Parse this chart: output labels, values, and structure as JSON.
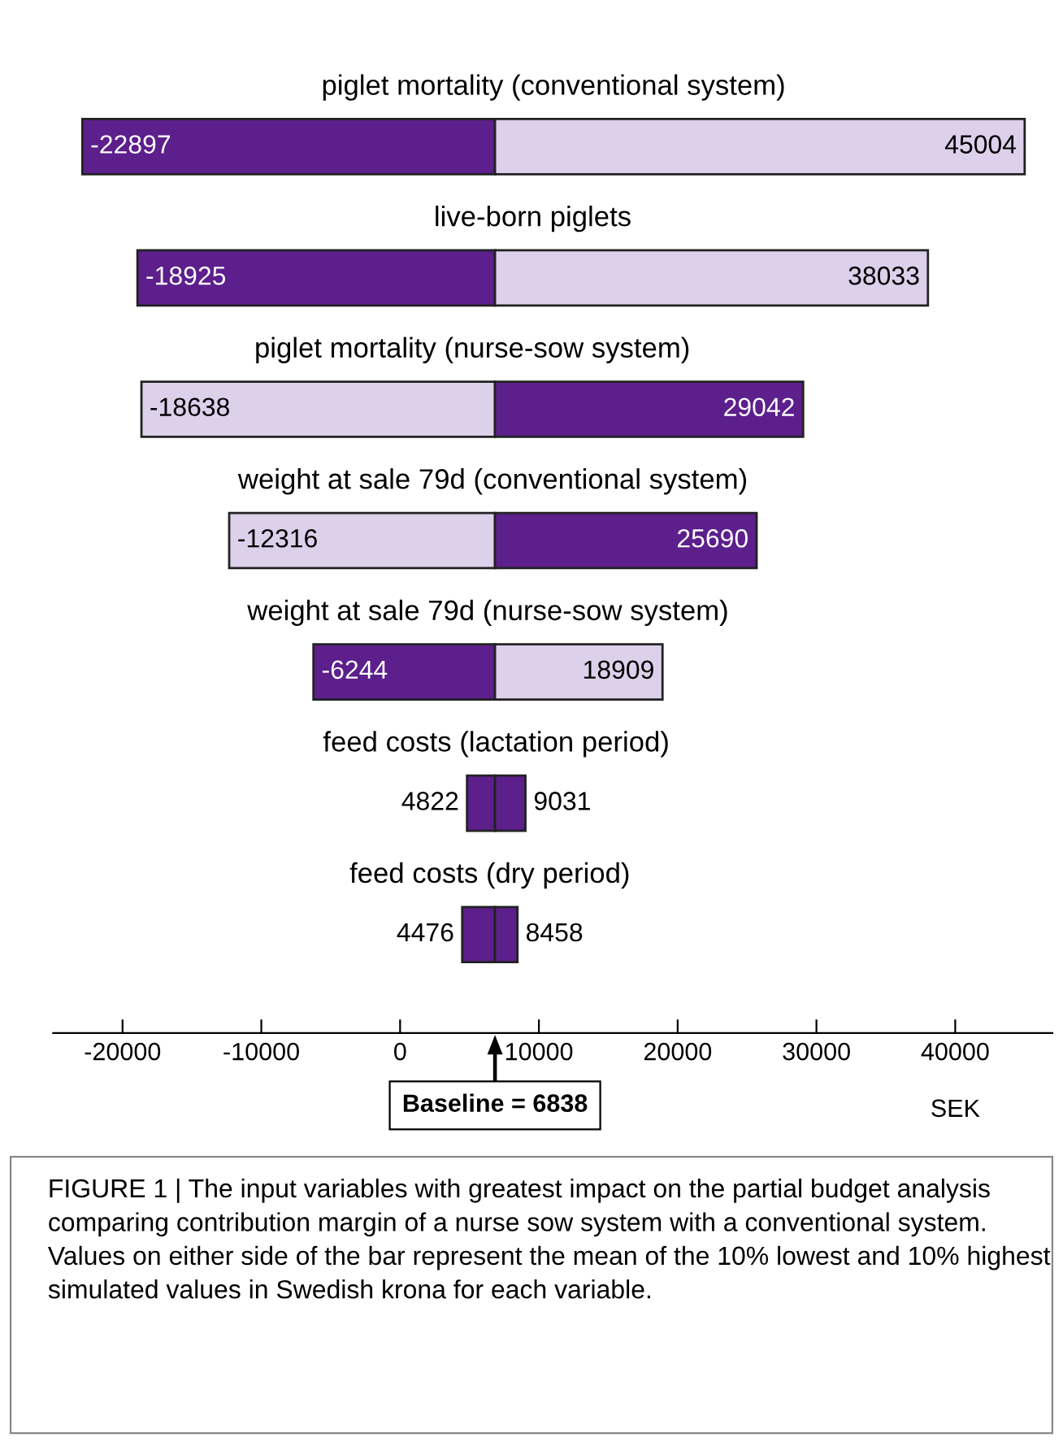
{
  "chart_data": {
    "type": "bar",
    "orientation": "horizontal",
    "categories": [
      "piglet mortality (conventional system)",
      "live-born piglets",
      "piglet mortality (nurse-sow system)",
      "weight at sale 79d (conventional system)",
      "weight at sale 79d (nurse-sow system)",
      "feed costs (lactation period)",
      "feed costs (dry period)"
    ],
    "series": [
      {
        "base": [
          -22897,
          -18925,
          -18638,
          -12316,
          -6244,
          4822,
          4476
        ],
        "values": [
          29735,
          25763,
          25476,
          19154,
          13082,
          2016,
          2362
        ],
        "colors": [
          "#5c1f8c",
          "#5c1f8c",
          "#ddd0ea",
          "#ddd0ea",
          "#5c1f8c",
          "#5c1f8c",
          "#5c1f8c"
        ]
      },
      {
        "base": [
          6838,
          6838,
          6838,
          6838,
          6838,
          6838,
          6838
        ],
        "values": [
          38166,
          31195,
          22204,
          18852,
          12071,
          2193,
          1620
        ],
        "colors": [
          "#ddd0ea",
          "#ddd0ea",
          "#5c1f8c",
          "#5c1f8c",
          "#ddd0ea",
          "#5c1f8c",
          "#5c1f8c"
        ]
      }
    ],
    "xlim": [
      -25000,
      47000
    ],
    "xticks": [
      -20000,
      -10000,
      0,
      10000,
      20000,
      30000,
      40000
    ],
    "xlabel": "SEK",
    "legend": false,
    "grid": false,
    "annotations": [
      {
        "text": "-22897",
        "x": -22897,
        "y": "piglet mortality (conventional system)"
      },
      {
        "text": "45004",
        "x": 45004,
        "y": "piglet mortality (conventional system)"
      },
      {
        "text": "-18925",
        "x": -18925,
        "y": "live-born piglets"
      },
      {
        "text": "38033",
        "x": 38033,
        "y": "live-born piglets"
      },
      {
        "text": "-18638",
        "x": -18638,
        "y": "piglet mortality (nurse-sow system)"
      },
      {
        "text": "29042",
        "x": 29042,
        "y": "piglet mortality (nurse-sow system)"
      },
      {
        "text": "-12316",
        "x": -12316,
        "y": "weight at sale 79d (conventional system)"
      },
      {
        "text": "25690",
        "x": 25690,
        "y": "weight at sale 79d (conventional system)"
      },
      {
        "text": "-6244",
        "x": -6244,
        "y": "weight at sale 79d (nurse-sow system)"
      },
      {
        "text": "18909",
        "x": 18909,
        "y": "weight at sale 79d (nurse-sow system)"
      },
      {
        "text": "4822",
        "x": 4822,
        "y": "feed costs (lactation period)"
      },
      {
        "text": "9031",
        "x": 9031,
        "y": "feed costs (lactation period)"
      },
      {
        "text": "4476",
        "x": 4476,
        "y": "feed costs (dry period)"
      },
      {
        "text": "8458",
        "x": 8458,
        "y": "feed costs (dry period)"
      },
      "Baseline = 6838",
      "FIGURE 1 | The input variables with greatest impact on the partial budget analysis comparing contribution margin of a nurse sow system with a conventional system. Values on either side of the bar represent the mean of the 10% lowest and 10% highest simulated values in Swedish krona for each variable."
    ]
  }
}
